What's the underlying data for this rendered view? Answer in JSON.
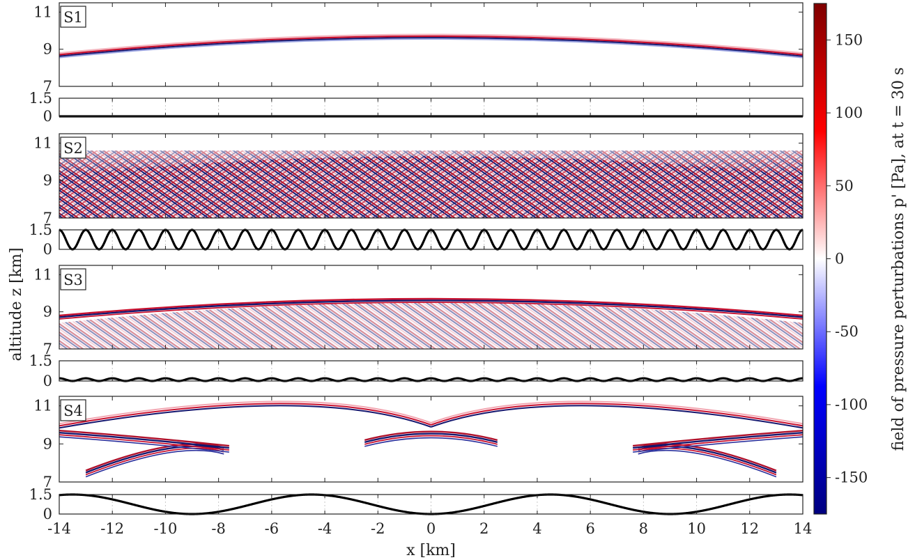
{
  "chart_data": {
    "type": "heatmap",
    "x_axis": {
      "label": "x [km]",
      "range": [
        -14,
        14
      ],
      "ticks": [
        -14,
        -12,
        -10,
        -8,
        -6,
        -4,
        -2,
        0,
        2,
        4,
        6,
        8,
        10,
        12,
        14
      ],
      "tick_labels": [
        "-14",
        "-12",
        "-10",
        "-8",
        "-6",
        "-4",
        "-2",
        "0",
        "2",
        "4",
        "6",
        "8",
        "10",
        "12",
        "14"
      ]
    },
    "y_axis": {
      "label": "altitude z [km]"
    },
    "field_ylim": [
      7,
      11.5
    ],
    "field_yticks": [
      7,
      9,
      11
    ],
    "field_ytick_labels": [
      "7",
      "9",
      "11"
    ],
    "topo_ylim": [
      0,
      1.5
    ],
    "topo_yticks": [
      0,
      1.5
    ],
    "topo_ytick_labels": [
      "0",
      "1.5"
    ],
    "colorbar": {
      "label": "field of pressure perturbations p' [Pa], at t = 30 s",
      "range": [
        -175,
        175
      ],
      "ticks": [
        150,
        100,
        50,
        0,
        -50,
        -100,
        -150
      ],
      "tick_labels": [
        "150",
        "100",
        "50",
        "0",
        "-50",
        "-100",
        "-150"
      ],
      "colormap": [
        "#00007f",
        "#0000ff",
        "#ffffff",
        "#ff0000",
        "#7f0000"
      ]
    },
    "panels": [
      {
        "label": "S1",
        "topography": {
          "amplitude": 0,
          "wavelength": 28
        },
        "field": "single wavefront arc, apex z≈9.7 km at x=0, z≈8.7 km at x=±14"
      },
      {
        "label": "S2",
        "topography": {
          "amplitude": 1.5,
          "wavelength": 1.0
        },
        "field": "dense scattered crossing wave pattern from z=7 to ~10.5 km"
      },
      {
        "label": "S3",
        "topography": {
          "amplitude": 0.2,
          "wavelength": 1.0
        },
        "field": "main arc apex ≈9.7 km with scattering below"
      },
      {
        "label": "S4",
        "topography": {
          "amplitude": 1.5,
          "wavelength": 9.0
        },
        "field": "focused wavefronts: arcs peaking ≈10.8 km, cusps near x=0, ±9.5"
      }
    ],
    "grid": true
  }
}
